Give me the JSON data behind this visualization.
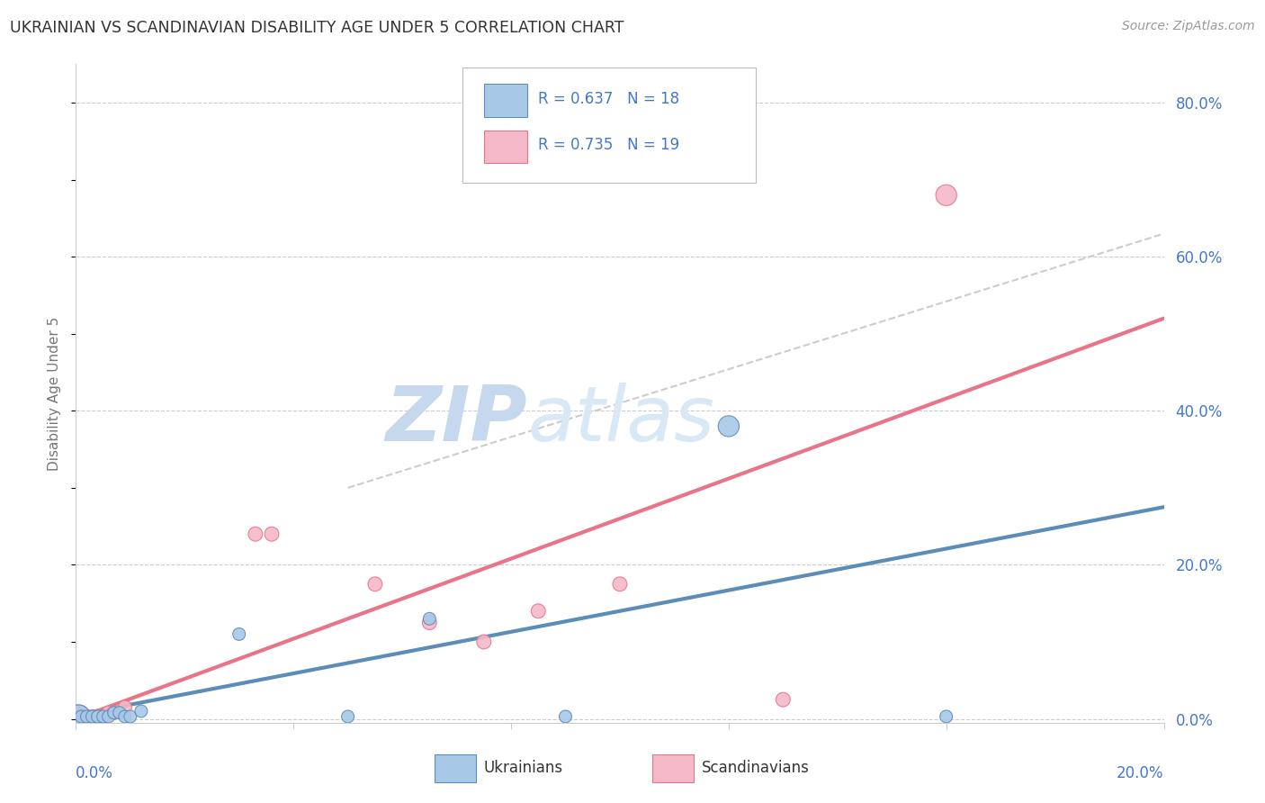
{
  "title": "UKRAINIAN VS SCANDINAVIAN DISABILITY AGE UNDER 5 CORRELATION CHART",
  "source": "Source: ZipAtlas.com",
  "ylabel": "Disability Age Under 5",
  "ytick_vals": [
    0.0,
    0.2,
    0.4,
    0.6,
    0.8
  ],
  "ytick_labels": [
    "",
    "20.0%",
    "40.0%",
    "60.0%",
    "80.0%"
  ],
  "xlim": [
    0.0,
    0.2
  ],
  "ylim": [
    -0.005,
    0.85
  ],
  "legend_line1": "R = 0.637   N = 18",
  "legend_line2": "R = 0.735   N = 19",
  "legend_label1": "Ukrainians",
  "legend_label2": "Scandinavians",
  "ukr_color": "#5b8db8",
  "scan_color": "#e8748a",
  "ukr_color_light": "#a8c8e8",
  "scan_color_light": "#f5b8c8",
  "watermark_zip": "ZIP",
  "watermark_atlas": "atlas",
  "background_color": "#ffffff",
  "grid_color": "#cccccc",
  "title_color": "#333333",
  "axis_label_color": "#4477cc",
  "ukr_scatter_x": [
    0.0005,
    0.001,
    0.002,
    0.003,
    0.004,
    0.005,
    0.006,
    0.007,
    0.008,
    0.009,
    0.01,
    0.012,
    0.03,
    0.05,
    0.065,
    0.09,
    0.12,
    0.16
  ],
  "ukr_scatter_y": [
    0.003,
    0.003,
    0.003,
    0.003,
    0.003,
    0.003,
    0.003,
    0.008,
    0.008,
    0.003,
    0.003,
    0.01,
    0.11,
    0.003,
    0.13,
    0.003,
    0.38,
    0.003
  ],
  "ukr_scatter_size": [
    350,
    100,
    100,
    100,
    100,
    100,
    100,
    100,
    100,
    100,
    100,
    100,
    100,
    100,
    100,
    100,
    280,
    100
  ],
  "scan_scatter_x": [
    0.0005,
    0.001,
    0.002,
    0.003,
    0.004,
    0.005,
    0.006,
    0.007,
    0.008,
    0.009,
    0.033,
    0.036,
    0.055,
    0.065,
    0.075,
    0.085,
    0.1,
    0.13,
    0.16
  ],
  "scan_scatter_y": [
    0.003,
    0.003,
    0.003,
    0.003,
    0.003,
    0.003,
    0.008,
    0.008,
    0.01,
    0.015,
    0.24,
    0.24,
    0.175,
    0.125,
    0.1,
    0.14,
    0.175,
    0.025,
    0.68
  ],
  "scan_scatter_size": [
    350,
    120,
    120,
    120,
    120,
    120,
    120,
    120,
    120,
    120,
    130,
    130,
    130,
    130,
    130,
    130,
    130,
    130,
    280
  ],
  "ukr_trend_x": [
    0.0,
    0.2
  ],
  "ukr_trend_y": [
    0.005,
    0.275
  ],
  "scan_trend_x": [
    0.0,
    0.2
  ],
  "scan_trend_y": [
    0.0,
    0.52
  ],
  "ref_line_x": [
    0.05,
    0.2
  ],
  "ref_line_y": [
    0.3,
    0.63
  ],
  "xtick_positions": [
    0.0,
    0.04,
    0.08,
    0.12,
    0.16,
    0.2
  ]
}
